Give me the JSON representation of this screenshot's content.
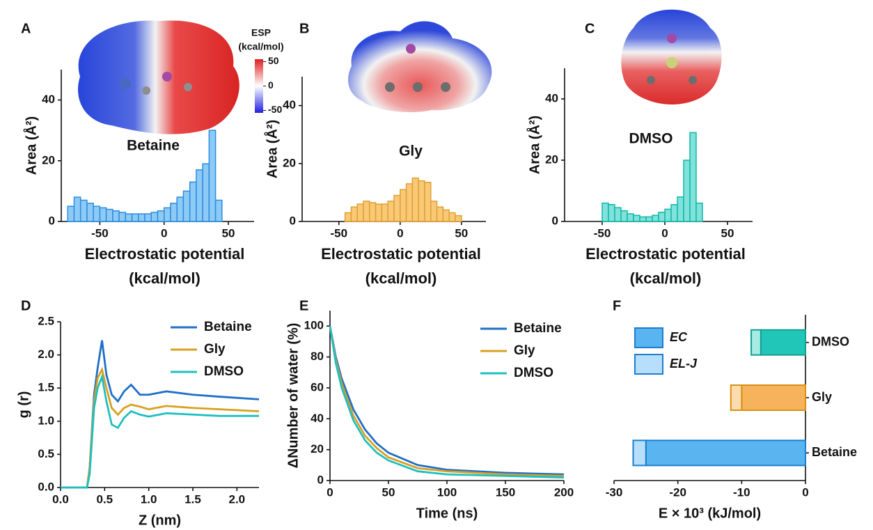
{
  "chart_data": [
    {
      "type": "histogram",
      "label": "A",
      "annotation": "Betaine",
      "colorbar": {
        "title": [
          "ESP",
          "(kcal/mol)"
        ],
        "lim": [
          -55,
          55
        ],
        "ticks": [
          50,
          0,
          -50
        ]
      },
      "bins": [
        -75,
        -70,
        -65,
        -60,
        -55,
        -50,
        -45,
        -40,
        -35,
        -30,
        -25,
        -20,
        -15,
        -10,
        -5,
        0,
        5,
        10,
        15,
        20,
        25,
        30,
        35,
        40,
        45
      ],
      "counts": [
        5,
        8,
        7,
        6,
        5,
        4.5,
        4,
        3.5,
        3,
        2.5,
        2.5,
        2.5,
        2.5,
        3,
        3.5,
        4.5,
        6,
        8,
        10,
        13,
        17,
        19,
        30,
        7
      ],
      "color": "#8ecaf6",
      "edge_color": "#2a8ee0",
      "xlim": [
        -80,
        70
      ],
      "ylim": [
        0,
        50
      ],
      "xticks": [
        -50,
        0,
        50
      ],
      "yticks": [
        0,
        20,
        40
      ],
      "x_label": [
        "Electrostatic potential",
        "(kcal/mol)"
      ],
      "y_label": "Area (Å²)"
    },
    {
      "type": "histogram",
      "label": "B",
      "annotation": "Gly",
      "bins": [
        -45,
        -40,
        -35,
        -30,
        -25,
        -20,
        -15,
        -10,
        -5,
        0,
        5,
        10,
        15,
        20,
        25,
        30,
        35,
        40,
        45,
        50
      ],
      "counts": [
        3,
        5,
        6,
        7,
        6.5,
        6,
        6,
        7,
        9,
        11,
        13,
        15,
        14,
        13.5,
        7,
        5,
        4,
        3,
        2
      ],
      "color": "#f9c978",
      "edge_color": "#e0a030",
      "xlim": [
        -80,
        70
      ],
      "ylim": [
        0,
        50
      ],
      "xticks": [
        -50,
        0,
        50
      ],
      "yticks": [
        0,
        20,
        40
      ],
      "x_label": [
        "Electrostatic potential",
        "(kcal/mol)"
      ],
      "y_label": "Area (Å²)"
    },
    {
      "type": "histogram",
      "label": "C",
      "annotation": "DMSO",
      "bins": [
        -50,
        -45,
        -40,
        -35,
        -30,
        -25,
        -20,
        -15,
        -10,
        -5,
        0,
        5,
        10,
        15,
        20,
        25,
        30
      ],
      "counts": [
        6,
        5.5,
        4.5,
        3.5,
        2.5,
        2,
        1.5,
        1.5,
        2,
        3,
        4,
        5.5,
        8,
        20,
        29,
        6
      ],
      "color": "#80e2da",
      "edge_color": "#10b8a8",
      "xlim": [
        -80,
        70
      ],
      "ylim": [
        0,
        50
      ],
      "xticks": [
        -50,
        0,
        50
      ],
      "yticks": [
        0,
        20,
        40
      ],
      "x_label": [
        "Electrostatic potential",
        "(kcal/mol)"
      ],
      "y_label": "Area (Å²)"
    },
    {
      "type": "line",
      "label": "D",
      "x": [
        0,
        0.3,
        0.33,
        0.38,
        0.42,
        0.47,
        0.52,
        0.58,
        0.65,
        0.72,
        0.8,
        0.9,
        1.0,
        1.2,
        1.5,
        1.8,
        2.25
      ],
      "series": [
        {
          "name": "Betaine",
          "color": "#1f6fc8",
          "values": [
            0,
            0,
            0.3,
            1.4,
            1.8,
            2.22,
            1.7,
            1.4,
            1.3,
            1.45,
            1.55,
            1.4,
            1.4,
            1.45,
            1.4,
            1.37,
            1.33
          ]
        },
        {
          "name": "Gly",
          "color": "#d9a020",
          "values": [
            0,
            0,
            0.3,
            1.3,
            1.65,
            1.78,
            1.5,
            1.2,
            1.1,
            1.2,
            1.25,
            1.22,
            1.18,
            1.23,
            1.2,
            1.18,
            1.15
          ]
        },
        {
          "name": "DMSO",
          "color": "#1fbfbf",
          "values": [
            0,
            0,
            0.2,
            1.2,
            1.5,
            1.67,
            1.3,
            0.95,
            0.9,
            1.05,
            1.15,
            1.1,
            1.07,
            1.12,
            1.1,
            1.08,
            1.08
          ]
        }
      ],
      "xlim": [
        0,
        2.25
      ],
      "ylim": [
        0,
        2.5
      ],
      "xticks": [
        {
          "value": 0,
          "label": "0.0"
        },
        0.5,
        {
          "value": 1,
          "label": "1.0"
        },
        1.5,
        {
          "value": 2,
          "label": "2.0"
        }
      ],
      "yticks": [
        {
          "value": 0,
          "label": "0.0"
        },
        0.5,
        {
          "value": 1,
          "label": "1.0"
        },
        1.5,
        {
          "value": 2,
          "label": "2.0"
        },
        2.5
      ],
      "x_label": "Z (nm)",
      "y_label": "g (r)",
      "legend": "top-right"
    },
    {
      "type": "line",
      "label": "E",
      "x": [
        0,
        5,
        10,
        20,
        30,
        40,
        50,
        75,
        100,
        150,
        200
      ],
      "series": [
        {
          "name": "Betaine",
          "color": "#1f6fc8",
          "values": [
            100,
            80,
            66,
            46,
            33,
            24,
            18,
            10,
            7,
            5,
            4
          ]
        },
        {
          "name": "Gly",
          "color": "#d9a020",
          "values": [
            100,
            78,
            63,
            42,
            29,
            21,
            15,
            8,
            6,
            4,
            3
          ]
        },
        {
          "name": "DMSO",
          "color": "#1fbfbf",
          "values": [
            100,
            76,
            60,
            39,
            26,
            18,
            13,
            6,
            4,
            3,
            2
          ]
        }
      ],
      "xlim": [
        0,
        200
      ],
      "ylim": [
        0,
        110
      ],
      "xticks": [
        0,
        50,
        100,
        150,
        200
      ],
      "yticks": [
        0,
        20,
        40,
        60,
        80,
        100
      ],
      "x_label": "Time (ns)",
      "y_label": "ΔNumber of water (%)",
      "legend": "top-right"
    },
    {
      "type": "bar",
      "label": "F",
      "orientation": "horizontal",
      "stacked": true,
      "categories": [
        "Betaine",
        "Gly",
        "DMSO"
      ],
      "edge_colors": [
        "#1a7fd0",
        "#d99010",
        "#10a090"
      ],
      "series": [
        {
          "name": "EC",
          "colors": [
            "#5ab4f0",
            "#f7b35b",
            "#22c6b8"
          ],
          "values": [
            -25,
            -10,
            -7
          ]
        },
        {
          "name": "EL-J",
          "colors": [
            "#b7defa",
            "#fbdcae",
            "#a6ebe4"
          ],
          "values": [
            -2,
            -1.7,
            -1.5
          ]
        }
      ],
      "xlim": [
        -30,
        0
      ],
      "xticks": [
        -30,
        -20,
        -10,
        0
      ],
      "x_label": "E × 10³ (kJ/mol)",
      "legend": "top-left"
    }
  ]
}
